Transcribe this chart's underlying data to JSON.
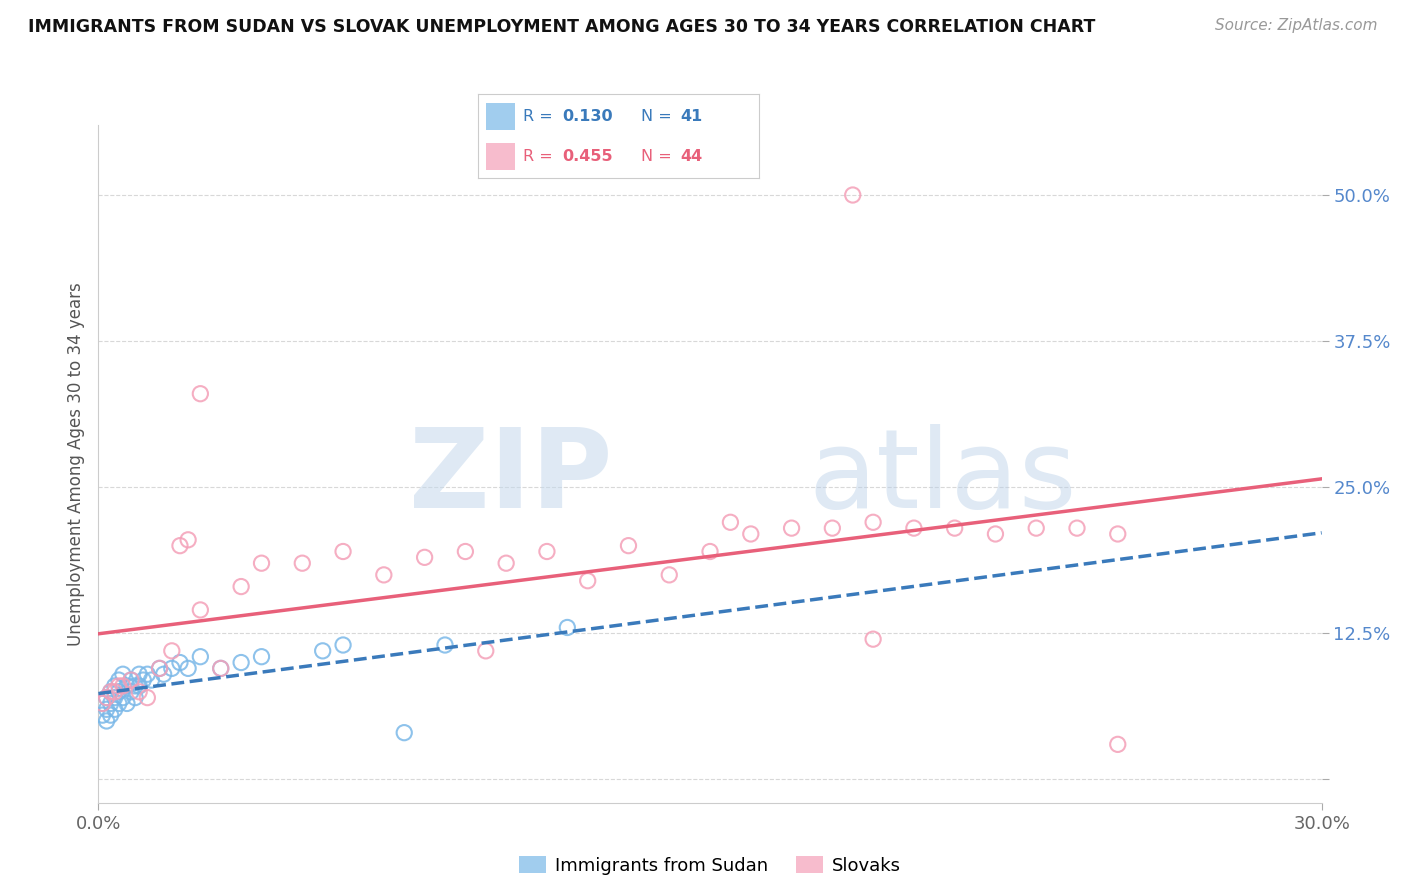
{
  "title": "IMMIGRANTS FROM SUDAN VS SLOVAK UNEMPLOYMENT AMONG AGES 30 TO 34 YEARS CORRELATION CHART",
  "source": "Source: ZipAtlas.com",
  "ylabel": "Unemployment Among Ages 30 to 34 years",
  "xlim": [
    0.0,
    0.3
  ],
  "ylim": [
    -0.02,
    0.56
  ],
  "yticks": [
    0.0,
    0.125,
    0.25,
    0.375,
    0.5
  ],
  "ytick_labels": [
    "",
    "12.5%",
    "25.0%",
    "37.5%",
    "50.0%"
  ],
  "blue_R": 0.13,
  "blue_N": 41,
  "pink_R": 0.455,
  "pink_N": 44,
  "blue_color": "#7ab8e8",
  "pink_color": "#f4a0b8",
  "blue_line_color": "#3a7abb",
  "pink_line_color": "#e8607a",
  "watermark": "ZIPatlas",
  "watermark_color": "#ccddf0",
  "legend_label_blue": "Immigrants from Sudan",
  "legend_label_pink": "Slovaks",
  "blue_x": [
    0.001,
    0.001,
    0.002,
    0.002,
    0.002,
    0.003,
    0.003,
    0.003,
    0.004,
    0.004,
    0.004,
    0.005,
    0.005,
    0.005,
    0.006,
    0.006,
    0.007,
    0.007,
    0.008,
    0.008,
    0.009,
    0.009,
    0.01,
    0.01,
    0.011,
    0.012,
    0.013,
    0.015,
    0.016,
    0.018,
    0.02,
    0.022,
    0.025,
    0.03,
    0.035,
    0.04,
    0.055,
    0.06,
    0.075,
    0.085,
    0.115
  ],
  "blue_y": [
    0.065,
    0.055,
    0.07,
    0.06,
    0.05,
    0.075,
    0.065,
    0.055,
    0.08,
    0.07,
    0.06,
    0.085,
    0.075,
    0.065,
    0.09,
    0.07,
    0.08,
    0.065,
    0.085,
    0.075,
    0.08,
    0.07,
    0.09,
    0.08,
    0.085,
    0.09,
    0.085,
    0.095,
    0.09,
    0.095,
    0.1,
    0.095,
    0.105,
    0.095,
    0.1,
    0.105,
    0.11,
    0.115,
    0.04,
    0.115,
    0.13
  ],
  "pink_x": [
    0.001,
    0.002,
    0.003,
    0.004,
    0.005,
    0.006,
    0.008,
    0.01,
    0.012,
    0.015,
    0.018,
    0.02,
    0.022,
    0.025,
    0.03,
    0.035,
    0.04,
    0.05,
    0.06,
    0.07,
    0.08,
    0.09,
    0.1,
    0.11,
    0.12,
    0.13,
    0.14,
    0.15,
    0.16,
    0.17,
    0.18,
    0.185,
    0.19,
    0.2,
    0.21,
    0.22,
    0.23,
    0.24,
    0.25,
    0.19,
    0.155,
    0.095,
    0.025,
    0.25
  ],
  "pink_y": [
    0.065,
    0.07,
    0.075,
    0.075,
    0.08,
    0.08,
    0.085,
    0.075,
    0.07,
    0.095,
    0.11,
    0.2,
    0.205,
    0.145,
    0.095,
    0.165,
    0.185,
    0.185,
    0.195,
    0.175,
    0.19,
    0.195,
    0.185,
    0.195,
    0.17,
    0.2,
    0.175,
    0.195,
    0.21,
    0.215,
    0.215,
    0.5,
    0.22,
    0.215,
    0.215,
    0.21,
    0.215,
    0.215,
    0.21,
    0.12,
    0.22,
    0.11,
    0.33,
    0.03
  ],
  "background_color": "#ffffff",
  "grid_color": "#d8d8d8"
}
